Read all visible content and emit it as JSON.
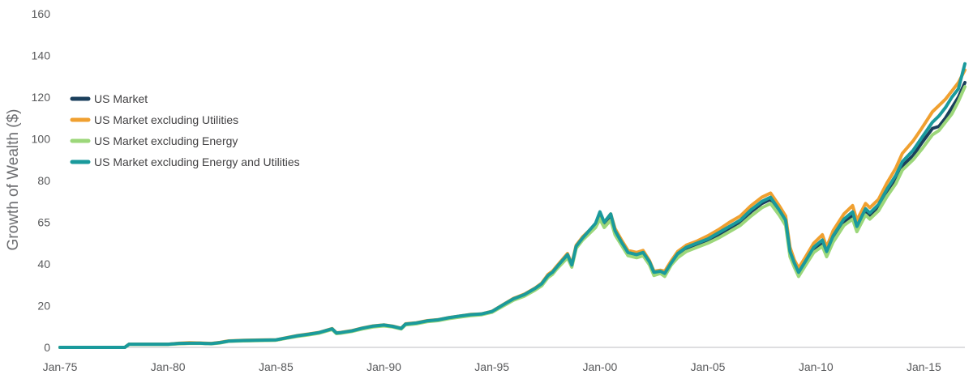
{
  "chart_data": {
    "type": "line",
    "title": "",
    "xlabel": "",
    "ylabel": "Growth of Wealth ($)",
    "ylim": [
      0,
      160
    ],
    "yticks": [
      "0",
      "20",
      "40",
      "65",
      "80",
      "100",
      "120",
      "140",
      "160"
    ],
    "xticks": [
      "Jan-75",
      "Jan-80",
      "Jan-85",
      "Jan-90",
      "Jan-95",
      "Jan-00",
      "Jan-05",
      "Jan-10",
      "Jan-15"
    ],
    "grid": false,
    "legend_position": "left",
    "x": [
      1975.0,
      1976.0,
      1977.0,
      1978.0,
      1978.2,
      1979.0,
      1980.0,
      1980.5,
      1981.0,
      1981.5,
      1982.0,
      1982.4,
      1982.8,
      1983.5,
      1984.0,
      1984.5,
      1985.0,
      1985.5,
      1986.0,
      1986.5,
      1987.0,
      1987.6,
      1987.8,
      1988.0,
      1988.5,
      1989.0,
      1989.5,
      1990.0,
      1990.4,
      1990.8,
      1991.0,
      1991.5,
      1992.0,
      1992.5,
      1993.0,
      1993.5,
      1994.0,
      1994.5,
      1995.0,
      1995.5,
      1996.0,
      1996.5,
      1997.0,
      1997.3,
      1997.6,
      1997.8,
      1998.0,
      1998.5,
      1998.7,
      1998.9,
      1999.2,
      1999.5,
      1999.8,
      2000.0,
      2000.2,
      2000.5,
      2000.7,
      2001.0,
      2001.3,
      2001.7,
      2002.0,
      2002.3,
      2002.5,
      2002.8,
      2003.0,
      2003.3,
      2003.6,
      2004.0,
      2004.5,
      2005.0,
      2005.5,
      2006.0,
      2006.5,
      2007.0,
      2007.5,
      2007.9,
      2008.3,
      2008.6,
      2008.8,
      2009.0,
      2009.2,
      2009.5,
      2009.9,
      2010.3,
      2010.5,
      2010.8,
      2011.3,
      2011.7,
      2011.9,
      2012.3,
      2012.5,
      2012.9,
      2013.3,
      2013.7,
      2014.0,
      2014.5,
      2014.9,
      2015.4,
      2015.7,
      2016.0,
      2016.3,
      2016.6,
      2016.9
    ],
    "series": [
      {
        "name": "US Market",
        "color": "#1b3f5c",
        "values": [
          0,
          0,
          0,
          0,
          1.5,
          1.5,
          1.5,
          1.8,
          2.0,
          2.0,
          1.8,
          2.2,
          3.0,
          3.2,
          3.3,
          3.4,
          3.5,
          4.5,
          5.5,
          6.2,
          7.0,
          8.8,
          6.8,
          7.0,
          7.8,
          9.0,
          10.0,
          10.5,
          10.0,
          9.0,
          11.0,
          11.5,
          12.5,
          13.0,
          14.0,
          14.8,
          15.5,
          15.8,
          17.0,
          20.0,
          23.0,
          25.0,
          28.0,
          30.0,
          34.0,
          35.5,
          38.0,
          44.0,
          39.0,
          48.0,
          52.0,
          55.0,
          58.0,
          62.0,
          58.0,
          62.0,
          55.0,
          50.0,
          45.0,
          44.0,
          45.0,
          40.0,
          35.0,
          36.0,
          35.0,
          40.0,
          44.0,
          47.0,
          49.0,
          51.0,
          54.0,
          57.0,
          60.0,
          65.0,
          69.0,
          71.0,
          65.0,
          60.0,
          45.0,
          40.0,
          35.0,
          40.0,
          47.0,
          50.0,
          45.0,
          52.0,
          60.0,
          63.0,
          57.0,
          65.0,
          63.0,
          67.0,
          74.0,
          80.0,
          87.0,
          92.0,
          98.0,
          105.0,
          106.0,
          110.0,
          115.0,
          120.0,
          127.0
        ]
      },
      {
        "name": "US Market excluding Utilities",
        "color": "#f0a030",
        "values": [
          0,
          0,
          0,
          0,
          1.5,
          1.5,
          1.5,
          2.0,
          2.2,
          2.1,
          1.9,
          2.4,
          3.1,
          3.4,
          3.5,
          3.6,
          3.6,
          4.7,
          5.7,
          6.4,
          7.2,
          9.0,
          7.0,
          7.2,
          8.0,
          9.3,
          10.3,
          10.8,
          10.2,
          9.2,
          11.3,
          11.8,
          12.8,
          13.3,
          14.3,
          15.0,
          15.8,
          16.0,
          17.3,
          20.4,
          23.5,
          25.5,
          28.5,
          30.8,
          35.0,
          36.5,
          39.0,
          45.0,
          40.0,
          49.0,
          53.0,
          56.0,
          59.0,
          64.0,
          60.0,
          64.0,
          57.0,
          51.5,
          46.5,
          45.5,
          46.5,
          41.5,
          36.5,
          37.0,
          36.5,
          41.5,
          46.0,
          49.0,
          51.0,
          53.5,
          56.5,
          60.0,
          63.0,
          68.0,
          72.0,
          74.0,
          68.0,
          63.0,
          48.0,
          42.0,
          38.0,
          43.0,
          50.0,
          54.0,
          48.0,
          56.0,
          64.0,
          68.0,
          61.0,
          69.0,
          67.0,
          71.0,
          79.0,
          86.0,
          93.0,
          99.0,
          105.0,
          113.0,
          116.0,
          119.0,
          123.0,
          127.0,
          133.0
        ]
      },
      {
        "name": "US Market excluding Energy",
        "color": "#9cd77a",
        "values": [
          0,
          0,
          0,
          0,
          1.4,
          1.4,
          1.4,
          1.7,
          1.9,
          1.9,
          1.7,
          2.1,
          2.9,
          3.1,
          3.2,
          3.3,
          3.4,
          4.4,
          5.3,
          6.0,
          6.8,
          8.6,
          6.6,
          6.8,
          7.6,
          8.8,
          9.8,
          10.3,
          9.8,
          8.8,
          10.8,
          11.3,
          12.3,
          12.8,
          13.8,
          14.5,
          15.2,
          15.6,
          16.8,
          19.7,
          22.6,
          24.6,
          27.5,
          29.5,
          33.5,
          35.0,
          37.5,
          43.0,
          38.5,
          47.5,
          51.5,
          54.5,
          57.5,
          61.5,
          57.5,
          61.0,
          54.0,
          49.0,
          44.0,
          43.0,
          44.0,
          39.5,
          34.5,
          35.5,
          34.0,
          39.5,
          43.0,
          46.0,
          48.0,
          50.0,
          52.5,
          55.5,
          58.5,
          63.0,
          67.0,
          69.0,
          63.5,
          58.5,
          43.5,
          38.5,
          34.0,
          39.0,
          45.5,
          48.5,
          43.5,
          50.5,
          58.5,
          61.5,
          55.5,
          63.5,
          61.5,
          65.5,
          72.5,
          78.5,
          85.0,
          90.0,
          95.0,
          102.0,
          104.0,
          108.0,
          112.0,
          118.0,
          125.0
        ]
      },
      {
        "name": "US Market excluding Energy and Utilities",
        "color": "#1a9a9c",
        "values": [
          0,
          0,
          0,
          0,
          1.5,
          1.5,
          1.5,
          1.9,
          2.0,
          2.0,
          1.8,
          2.3,
          3.0,
          3.3,
          3.4,
          3.5,
          3.6,
          4.6,
          5.6,
          6.3,
          7.1,
          8.9,
          6.9,
          7.1,
          7.9,
          9.2,
          10.2,
          10.7,
          10.1,
          9.1,
          11.2,
          11.7,
          12.7,
          13.2,
          14.2,
          15.0,
          15.7,
          16.0,
          17.2,
          20.3,
          23.3,
          25.3,
          28.3,
          30.5,
          34.5,
          36.0,
          38.5,
          44.5,
          39.5,
          48.5,
          52.5,
          56.0,
          59.5,
          65.0,
          60.0,
          64.0,
          56.0,
          50.5,
          45.5,
          44.5,
          45.5,
          41.0,
          36.0,
          36.5,
          35.5,
          40.5,
          45.0,
          48.0,
          50.0,
          52.0,
          55.0,
          58.0,
          61.0,
          66.0,
          70.0,
          72.0,
          66.0,
          61.0,
          46.0,
          40.5,
          36.0,
          41.0,
          48.0,
          51.5,
          46.0,
          53.5,
          61.5,
          65.0,
          58.0,
          66.5,
          64.5,
          68.5,
          76.0,
          82.5,
          89.0,
          94.5,
          100.5,
          108.0,
          111.0,
          115.0,
          120.0,
          124.0,
          136.0
        ]
      }
    ]
  }
}
